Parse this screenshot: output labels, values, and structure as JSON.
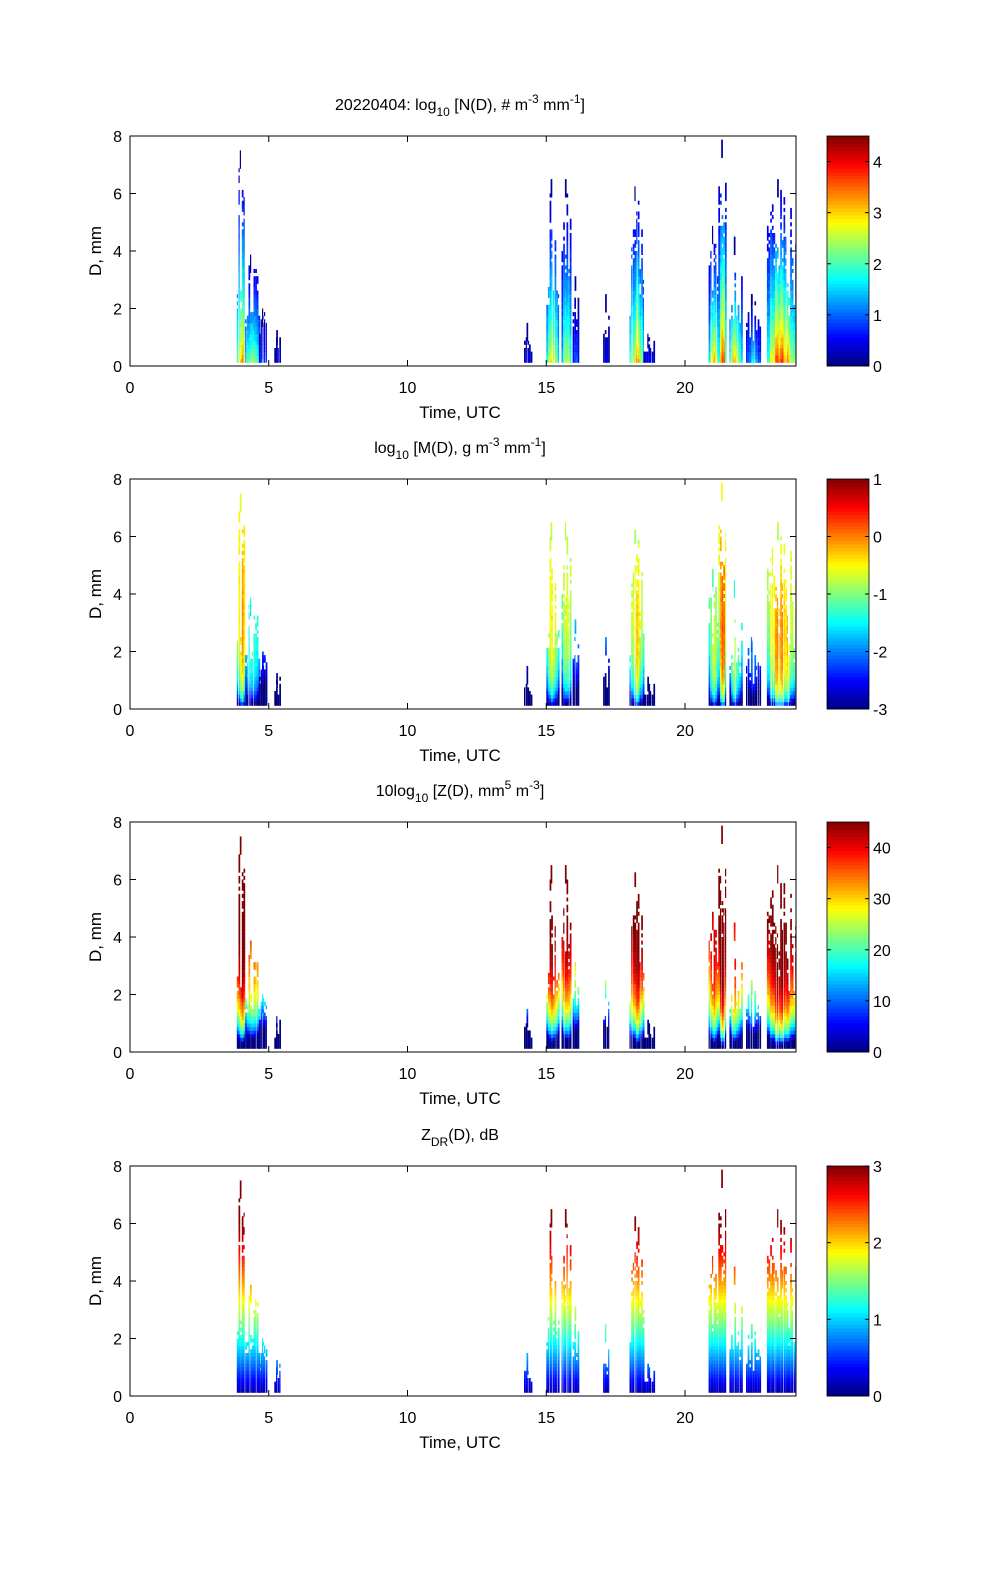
{
  "figure": {
    "date_prefix": "20220404: "
  },
  "chart_data": [
    {
      "type": "heatmap",
      "id": "nd",
      "title": {
        "pre": "20220404: log",
        "sub": "10",
        "mid": " [N(D), # m",
        "sup1": "-3",
        "mid2": " mm",
        "sup2": "-1",
        "post": "]"
      },
      "xlabel": "Time, UTC",
      "ylabel": "D, mm",
      "xlim": [
        0,
        24
      ],
      "ylim": [
        0,
        8
      ],
      "xticks": [
        0,
        5,
        10,
        15,
        20
      ],
      "yticks": [
        0,
        2,
        4,
        6,
        8
      ],
      "colorbar": {
        "clim": [
          0,
          4.5
        ],
        "ticks": [
          0,
          1,
          2,
          3,
          4
        ],
        "colormap": "jet"
      },
      "field": "number"
    },
    {
      "type": "heatmap",
      "id": "md",
      "title": {
        "pre": "log",
        "sub": "10",
        "mid": " [M(D), g m",
        "sup1": "-3",
        "mid2": " mm",
        "sup2": "-1",
        "post": "]"
      },
      "xlabel": "Time, UTC",
      "ylabel": "D, mm",
      "xlim": [
        0,
        24
      ],
      "ylim": [
        0,
        8
      ],
      "xticks": [
        0,
        5,
        10,
        15,
        20
      ],
      "yticks": [
        0,
        2,
        4,
        6,
        8
      ],
      "colorbar": {
        "clim": [
          -3,
          1
        ],
        "ticks": [
          -3,
          -2,
          -1,
          0,
          1
        ],
        "colormap": "jet"
      },
      "field": "mass"
    },
    {
      "type": "heatmap",
      "id": "zd",
      "title": {
        "pre": "10log",
        "sub": "10",
        "mid": " [Z(D),  mm",
        "sup1": "5",
        "mid2": " m",
        "sup2": "-3",
        "post": "]"
      },
      "xlabel": "Time, UTC",
      "ylabel": "D, mm",
      "xlim": [
        0,
        24
      ],
      "ylim": [
        0,
        8
      ],
      "xticks": [
        0,
        5,
        10,
        15,
        20
      ],
      "yticks": [
        0,
        2,
        4,
        6,
        8
      ],
      "colorbar": {
        "clim": [
          0,
          45
        ],
        "ticks": [
          0,
          10,
          20,
          30,
          40
        ],
        "colormap": "jet"
      },
      "field": "reflectivity"
    },
    {
      "type": "heatmap",
      "id": "zdr",
      "title": {
        "pre": "Z",
        "sub": "DR",
        "mid": "(D), dB",
        "sup1": "",
        "mid2": "",
        "sup2": "",
        "post": ""
      },
      "xlabel": "Time, UTC",
      "ylabel": "D, mm",
      "xlim": [
        0,
        24
      ],
      "ylim": [
        0,
        8
      ],
      "xticks": [
        0,
        5,
        10,
        15,
        20
      ],
      "yticks": [
        0,
        2,
        4,
        6,
        8
      ],
      "colorbar": {
        "clim": [
          0,
          3
        ],
        "ticks": [
          0,
          1,
          2,
          3
        ],
        "colormap": "jet"
      },
      "field": "zdr"
    }
  ],
  "events": [
    {
      "t_start": 3.85,
      "t_end": 4.15,
      "d_max": 7.5,
      "peak_logN": 4.3
    },
    {
      "t_start": 4.15,
      "t_end": 4.65,
      "d_max": 3.9,
      "peak_logN": 3.4
    },
    {
      "t_start": 4.65,
      "t_end": 4.95,
      "d_max": 2.0,
      "peak_logN": 1.2
    },
    {
      "t_start": 5.2,
      "t_end": 5.4,
      "d_max": 1.3,
      "peak_logN": 0.6
    },
    {
      "t_start": 14.2,
      "t_end": 14.45,
      "d_max": 1.5,
      "peak_logN": 0.6
    },
    {
      "t_start": 15.0,
      "t_end": 15.45,
      "d_max": 6.5,
      "peak_logN": 3.8
    },
    {
      "t_start": 15.55,
      "t_end": 15.9,
      "d_max": 6.5,
      "peak_logN": 3.4
    },
    {
      "t_start": 15.95,
      "t_end": 16.15,
      "d_max": 3.2,
      "peak_logN": 1.4
    },
    {
      "t_start": 17.05,
      "t_end": 17.25,
      "d_max": 2.5,
      "peak_logN": 0.7
    },
    {
      "t_start": 18.0,
      "t_end": 18.5,
      "d_max": 6.3,
      "peak_logN": 4.0
    },
    {
      "t_start": 18.5,
      "t_end": 18.9,
      "d_max": 1.2,
      "peak_logN": 0.8
    },
    {
      "t_start": 20.85,
      "t_end": 21.2,
      "d_max": 4.9,
      "peak_logN": 4.0
    },
    {
      "t_start": 21.2,
      "t_end": 21.5,
      "d_max": 7.9,
      "peak_logN": 4.4
    },
    {
      "t_start": 21.6,
      "t_end": 22.05,
      "d_max": 4.5,
      "peak_logN": 3.9
    },
    {
      "t_start": 22.2,
      "t_end": 22.7,
      "d_max": 2.6,
      "peak_logN": 2.0
    },
    {
      "t_start": 22.95,
      "t_end": 24.0,
      "d_max": 6.5,
      "peak_logN": 4.5
    }
  ]
}
